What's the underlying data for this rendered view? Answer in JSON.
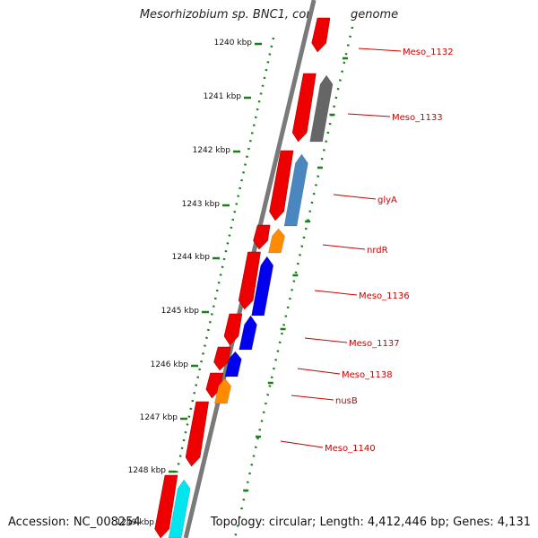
{
  "title": "Mesorhizobium sp. BNC1, complete genome",
  "accession": "Accession: NC_008254",
  "topology": "Topology: circular; Length: 4,412,446 bp; Genes: 4,131",
  "colors": {
    "gene_red": "#ee0000",
    "gray": "#666666",
    "steelblue": "#4a86bf",
    "orange": "#ff8c00",
    "blue": "#0000ee",
    "cyan": "#00e5ee",
    "tick_green": "#1a7f1a",
    "label_red": "#cc0000"
  },
  "ruler": [
    {
      "label": "1240 kbp"
    },
    {
      "label": "1241 kbp"
    },
    {
      "label": "1242 kbp"
    },
    {
      "label": "1243 kbp"
    },
    {
      "label": "1244 kbp"
    },
    {
      "label": "1245 kbp"
    },
    {
      "label": "1246 kbp"
    },
    {
      "label": "1247 kbp"
    },
    {
      "label": "1248 kbp"
    },
    {
      "label": "1249 kbp"
    }
  ],
  "genes": [
    {
      "name": "Meso_1132",
      "color": "gene_red"
    },
    {
      "name": "Meso_1133",
      "color": "gray"
    },
    {
      "name": "glyA",
      "color": "steelblue"
    },
    {
      "name": "nrdR",
      "color": "orange"
    },
    {
      "name": "Meso_1136",
      "color": "blue"
    },
    {
      "name": "Meso_1137",
      "color": "blue"
    },
    {
      "name": "Meso_1138",
      "color": "blue"
    },
    {
      "name": "nusB",
      "color": "orange"
    },
    {
      "name": "Meso_1140",
      "color": "gene_red"
    }
  ]
}
